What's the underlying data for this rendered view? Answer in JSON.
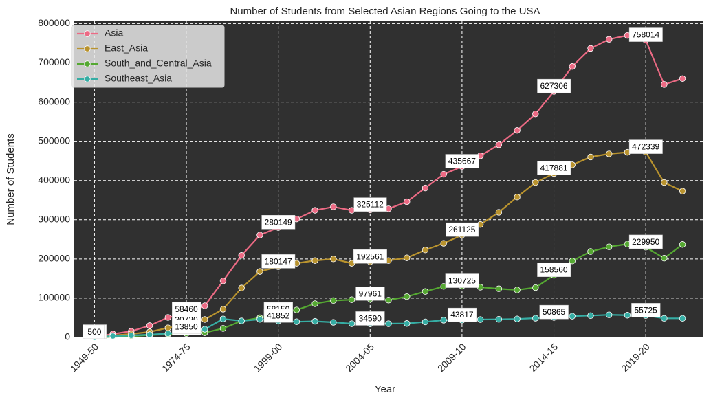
{
  "chart_data": {
    "type": "line",
    "title": "Number of Students from Selected Asian Regions Going to the USA",
    "x_label": "Year",
    "y_label": "Number of Students",
    "categories": [
      "1949-50",
      null,
      null,
      null,
      null,
      "1974-75",
      null,
      null,
      null,
      null,
      "1999-00",
      null,
      null,
      null,
      null,
      "2004-05",
      null,
      null,
      null,
      null,
      "2009-10",
      null,
      null,
      null,
      null,
      "2014-15",
      null,
      null,
      null,
      null,
      "2019-20",
      null,
      null
    ],
    "series": [
      {
        "name": "Asia",
        "color": "#ec6a84",
        "values": [
          1124,
          8800,
          15800,
          30000,
          51000,
          58460,
          80700,
          144000,
          209000,
          261000,
          280149,
          302000,
          324000,
          333000,
          324000,
          325112,
          328000,
          346000,
          381000,
          416000,
          435667,
          463000,
          491000,
          528000,
          570000,
          627306,
          691000,
          737000,
          760000,
          770000,
          758014,
          645000,
          660000
        ]
      },
      {
        "name": "East_Asia",
        "color": "#b9932e",
        "values": [
          400,
          5000,
          8800,
          14000,
          24500,
          30720,
          45600,
          72000,
          126000,
          168000,
          180147,
          189000,
          196000,
          200000,
          189000,
          192561,
          196000,
          203000,
          223000,
          240000,
          261125,
          288000,
          319000,
          358000,
          395000,
          417881,
          440000,
          460000,
          468000,
          472000,
          472339,
          395000,
          373000
        ]
      },
      {
        "name": "South_and_Central_Asia",
        "color": "#55a832",
        "values": [
          300,
          1500,
          3000,
          6000,
          8000,
          10000,
          12000,
          23000,
          42000,
          50000,
          58150,
          70000,
          86000,
          94000,
          96000,
          97961,
          95000,
          104000,
          117000,
          130000,
          130725,
          128000,
          124000,
          121000,
          127000,
          158560,
          195000,
          219000,
          231000,
          238000,
          229950,
          202000,
          237000
        ]
      },
      {
        "name": "Southeast_Asia",
        "color": "#36ada4",
        "values": [
          500,
          3500,
          5000,
          7000,
          10000,
          13850,
          21000,
          47000,
          42000,
          46000,
          41852,
          40000,
          41000,
          38500,
          35000,
          34590,
          35000,
          35500,
          39500,
          44000,
          43817,
          45500,
          46000,
          47000,
          49000,
          50865,
          54000,
          55500,
          57500,
          56500,
          55725,
          48500,
          48500
        ]
      }
    ],
    "ylim": [
      0,
      806000
    ],
    "yticks": [
      0,
      100000,
      200000,
      300000,
      400000,
      500000,
      600000,
      700000,
      800000
    ],
    "grid": true,
    "legend": "upper left",
    "annotate_every": 5
  }
}
